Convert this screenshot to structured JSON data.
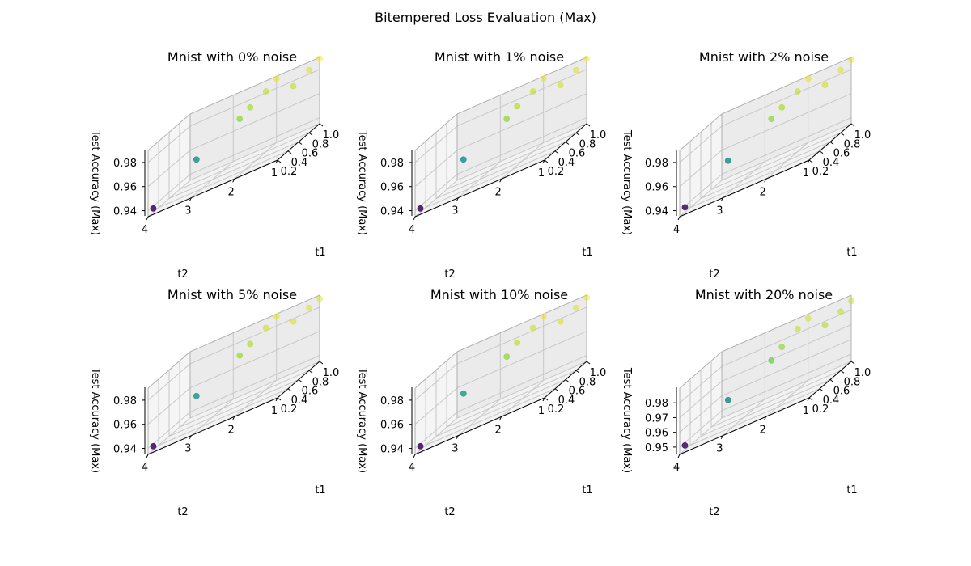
{
  "figure": {
    "title": "Bitempered Loss Evaluation (Max)"
  },
  "chart_data": [
    {
      "type": "scatter3d",
      "title": "Mnist with 0% noise",
      "xlabel": "t1",
      "ylabel": "t2",
      "zlabel": "Test Accuracy (Max)",
      "xlim": [
        0.2,
        1.0
      ],
      "ylim": [
        1,
        4
      ],
      "zlim": [
        0.935,
        0.99
      ],
      "xticks": [
        0.2,
        0.4,
        0.6,
        0.8,
        1.0
      ],
      "yticks": [
        1,
        2,
        3,
        4
      ],
      "zticks": [
        0.94,
        0.96,
        0.98
      ],
      "grid": true,
      "colormap": "viridis",
      "points": [
        {
          "x": 0.3,
          "y": 4,
          "z": 0.938
        },
        {
          "x": 0.3,
          "y": 3,
          "z": 0.963
        },
        {
          "x": 0.3,
          "y": 2,
          "z": 0.981
        },
        {
          "x": 0.5,
          "y": 2,
          "z": 0.983
        },
        {
          "x": 0.8,
          "y": 2,
          "z": 0.985
        },
        {
          "x": 0.5,
          "y": 1,
          "z": 0.985
        },
        {
          "x": 0.8,
          "y": 1,
          "z": 0.987
        },
        {
          "x": 1.0,
          "y": 2,
          "z": 0.988
        },
        {
          "x": 1.0,
          "y": 1,
          "z": 0.989
        }
      ]
    },
    {
      "type": "scatter3d",
      "title": "Mnist with 1% noise",
      "xlabel": "t1",
      "ylabel": "t2",
      "zlabel": "Test Accuracy (Max)",
      "xlim": [
        0.2,
        1.0
      ],
      "ylim": [
        1,
        4
      ],
      "zlim": [
        0.935,
        0.99
      ],
      "xticks": [
        0.2,
        0.4,
        0.6,
        0.8,
        1.0
      ],
      "yticks": [
        1,
        2,
        3,
        4
      ],
      "zticks": [
        0.94,
        0.96,
        0.98
      ],
      "grid": true,
      "colormap": "viridis",
      "points": [
        {
          "x": 0.3,
          "y": 4,
          "z": 0.938
        },
        {
          "x": 0.3,
          "y": 3,
          "z": 0.963
        },
        {
          "x": 0.3,
          "y": 2,
          "z": 0.981
        },
        {
          "x": 0.5,
          "y": 2,
          "z": 0.984
        },
        {
          "x": 0.8,
          "y": 2,
          "z": 0.985
        },
        {
          "x": 0.5,
          "y": 1,
          "z": 0.986
        },
        {
          "x": 0.8,
          "y": 1,
          "z": 0.987
        },
        {
          "x": 1.0,
          "y": 2,
          "z": 0.988
        },
        {
          "x": 1.0,
          "y": 1,
          "z": 0.989
        }
      ]
    },
    {
      "type": "scatter3d",
      "title": "Mnist with 2% noise",
      "xlabel": "t1",
      "ylabel": "t2",
      "zlabel": "Test Accuracy (Max)",
      "xlim": [
        0.2,
        1.0
      ],
      "ylim": [
        1,
        4
      ],
      "zlim": [
        0.935,
        0.99
      ],
      "xticks": [
        0.2,
        0.4,
        0.6,
        0.8,
        1.0
      ],
      "yticks": [
        1,
        2,
        3,
        4
      ],
      "zticks": [
        0.94,
        0.96,
        0.98
      ],
      "grid": true,
      "colormap": "viridis",
      "points": [
        {
          "x": 0.3,
          "y": 4,
          "z": 0.939
        },
        {
          "x": 0.3,
          "y": 3,
          "z": 0.962
        },
        {
          "x": 0.3,
          "y": 2,
          "z": 0.981
        },
        {
          "x": 0.5,
          "y": 2,
          "z": 0.983
        },
        {
          "x": 0.8,
          "y": 2,
          "z": 0.985
        },
        {
          "x": 0.5,
          "y": 1,
          "z": 0.986
        },
        {
          "x": 0.8,
          "y": 1,
          "z": 0.987
        },
        {
          "x": 1.0,
          "y": 2,
          "z": 0.988
        },
        {
          "x": 1.0,
          "y": 1,
          "z": 0.988
        }
      ]
    },
    {
      "type": "scatter3d",
      "title": "Mnist with 5% noise",
      "xlabel": "t1",
      "ylabel": "t2",
      "zlabel": "Test Accuracy (Max)",
      "xlim": [
        0.2,
        1.0
      ],
      "ylim": [
        1,
        4
      ],
      "zlim": [
        0.935,
        0.99
      ],
      "xticks": [
        0.2,
        0.4,
        0.6,
        0.8,
        1.0
      ],
      "yticks": [
        1,
        2,
        3,
        4
      ],
      "zticks": [
        0.94,
        0.96,
        0.98
      ],
      "grid": true,
      "colormap": "viridis",
      "points": [
        {
          "x": 0.3,
          "y": 4,
          "z": 0.938
        },
        {
          "x": 0.3,
          "y": 3,
          "z": 0.964
        },
        {
          "x": 0.3,
          "y": 2,
          "z": 0.982
        },
        {
          "x": 0.5,
          "y": 2,
          "z": 0.984
        },
        {
          "x": 0.8,
          "y": 2,
          "z": 0.986
        },
        {
          "x": 0.5,
          "y": 1,
          "z": 0.987
        },
        {
          "x": 0.8,
          "y": 1,
          "z": 0.987
        },
        {
          "x": 1.0,
          "y": 2,
          "z": 0.988
        },
        {
          "x": 1.0,
          "y": 1,
          "z": 0.987
        }
      ]
    },
    {
      "type": "scatter3d",
      "title": "Mnist with 10% noise",
      "xlabel": "t1",
      "ylabel": "t2",
      "zlabel": "Test Accuracy (Max)",
      "xlim": [
        0.2,
        1.0
      ],
      "ylim": [
        1,
        4
      ],
      "zlim": [
        0.935,
        0.99
      ],
      "xticks": [
        0.2,
        0.4,
        0.6,
        0.8,
        1.0
      ],
      "yticks": [
        1,
        2,
        3,
        4
      ],
      "zticks": [
        0.94,
        0.96,
        0.98
      ],
      "grid": true,
      "colormap": "viridis",
      "points": [
        {
          "x": 0.3,
          "y": 4,
          "z": 0.938
        },
        {
          "x": 0.3,
          "y": 3,
          "z": 0.966
        },
        {
          "x": 0.3,
          "y": 2,
          "z": 0.981
        },
        {
          "x": 0.5,
          "y": 2,
          "z": 0.985
        },
        {
          "x": 0.8,
          "y": 2,
          "z": 0.986
        },
        {
          "x": 0.5,
          "y": 1,
          "z": 0.987
        },
        {
          "x": 0.8,
          "y": 1,
          "z": 0.987
        },
        {
          "x": 1.0,
          "y": 2,
          "z": 0.988
        },
        {
          "x": 1.0,
          "y": 1,
          "z": 0.988
        }
      ]
    },
    {
      "type": "scatter3d",
      "title": "Mnist with 20% noise",
      "xlabel": "t1",
      "ylabel": "t2",
      "zlabel": "Test Accuracy (Max)",
      "xlim": [
        0.2,
        1.0
      ],
      "ylim": [
        1,
        4
      ],
      "zlim": [
        0.945,
        0.99
      ],
      "xticks": [
        0.2,
        0.4,
        0.6,
        0.8,
        1.0
      ],
      "yticks": [
        1,
        2,
        3,
        4
      ],
      "zticks": [
        0.95,
        0.96,
        0.97,
        0.98
      ],
      "grid": true,
      "colormap": "viridis",
      "points": [
        {
          "x": 0.3,
          "y": 4,
          "z": 0.948
        },
        {
          "x": 0.3,
          "y": 3,
          "z": 0.966
        },
        {
          "x": 0.3,
          "y": 2,
          "z": 0.98
        },
        {
          "x": 0.5,
          "y": 2,
          "z": 0.983
        },
        {
          "x": 0.8,
          "y": 2,
          "z": 0.986
        },
        {
          "x": 0.5,
          "y": 1,
          "z": 0.985
        },
        {
          "x": 0.8,
          "y": 1,
          "z": 0.985
        },
        {
          "x": 1.0,
          "y": 2,
          "z": 0.987
        },
        {
          "x": 1.0,
          "y": 1,
          "z": 0.986
        }
      ]
    }
  ]
}
